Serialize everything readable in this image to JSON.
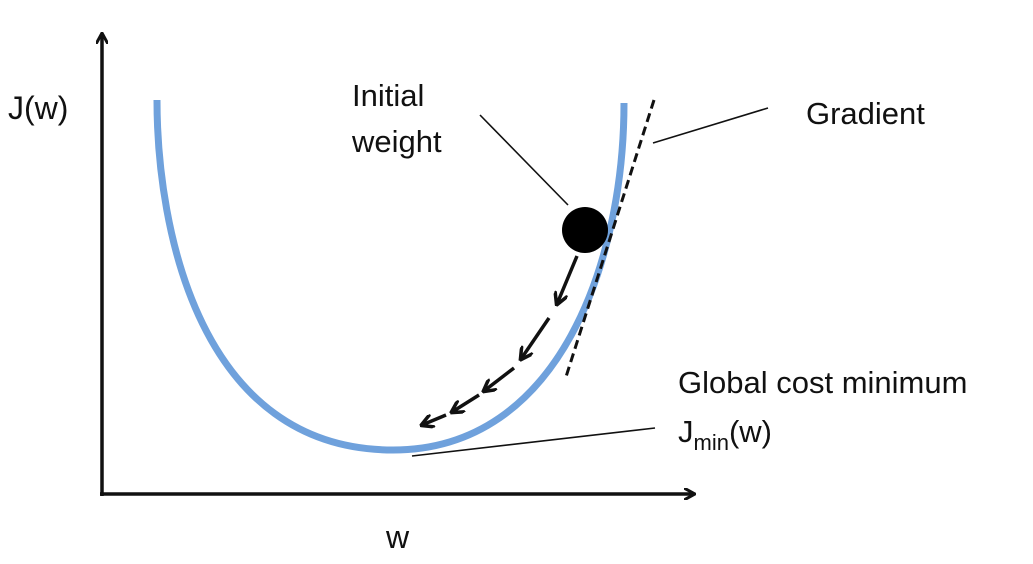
{
  "axes": {
    "y_label": "J(w)",
    "x_label": "w"
  },
  "labels": {
    "initial_weight_line1": "Initial",
    "initial_weight_line2": "weight",
    "gradient": "Gradient",
    "global_min_line1": "Global cost minimum",
    "jmin_base": "J",
    "jmin_sub": "min",
    "jmin_suffix": "(w)"
  },
  "colors": {
    "curve": "#6fa1dc",
    "ink": "#111111"
  }
}
